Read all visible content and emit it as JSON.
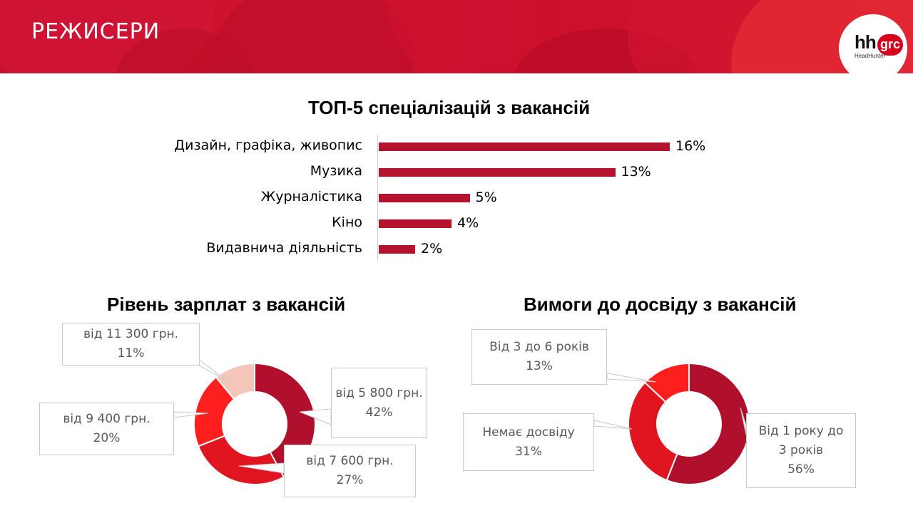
{
  "header": {
    "title": "РЕЖИСЕРИ",
    "logo_text": "hh",
    "logo_badge": "grc",
    "logo_sub": "HeadHunter"
  },
  "colors": {
    "bar": "#b5122e",
    "slice_dark": "#b0102b",
    "slice_mid": "#e0151f",
    "slice_red": "#ff1f1f",
    "slice_pink": "#f4c6b9"
  },
  "chart_data": [
    {
      "type": "bar",
      "title": "ТОП-5 спеціалізацій з вакансій",
      "categories": [
        "Дизайн, графіка, живопис",
        "Музика",
        "Журналістика",
        "Кіно",
        "Видавнича діяльність"
      ],
      "values": [
        16,
        13,
        5,
        4,
        2
      ],
      "value_labels": [
        "16%",
        "13%",
        "5%",
        "4%",
        "2%"
      ],
      "orientation": "horizontal",
      "unit": "%"
    },
    {
      "type": "pie",
      "subtype": "donut",
      "title": "Рівень зарплат з вакансій",
      "slices": [
        {
          "line1": "від 5 800 грн.",
          "line2": "42%",
          "value": 42,
          "color": "#b0102b"
        },
        {
          "line1": "від 7 600 грн.",
          "line2": "27%",
          "value": 27,
          "color": "#e0151f"
        },
        {
          "line1": "від 9 400 грн.",
          "line2": "20%",
          "value": 20,
          "color": "#ff1f1f"
        },
        {
          "line1": "від 11 300 грн.",
          "line2": "11%",
          "value": 11,
          "color": "#f4c6b9"
        }
      ]
    },
    {
      "type": "pie",
      "subtype": "donut",
      "title": "Вимоги до досвіду з вакансій",
      "slices": [
        {
          "line1": "Від   1  року до",
          "line2": "3  років",
          "line3": "56%",
          "value": 56,
          "color": "#b0102b"
        },
        {
          "line1": "Немає досвіду",
          "line2": "31%",
          "value": 31,
          "color": "#e0151f"
        },
        {
          "line1": "Від   3  до 6 років",
          "line2": "13%",
          "value": 13,
          "color": "#ff1f1f"
        }
      ]
    }
  ]
}
